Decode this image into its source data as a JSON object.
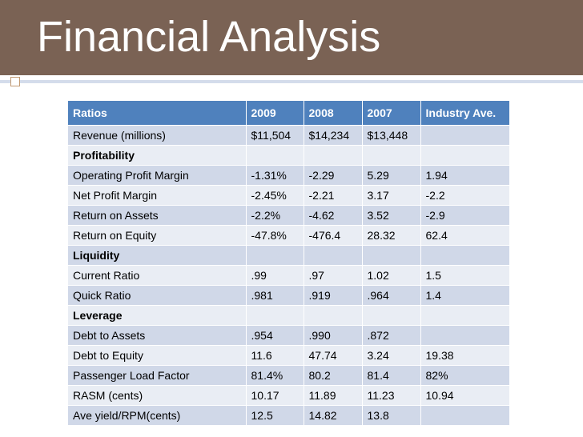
{
  "title": "Financial Analysis",
  "colors": {
    "title_bar": "#7a6254",
    "header_bg": "#4f81bd",
    "row_dark": "#d0d8e8",
    "row_light": "#e9edf4",
    "accent": "#c19a73"
  },
  "table": {
    "headers": [
      "Ratios",
      "2009",
      "2008",
      "2007",
      "Industry Ave."
    ],
    "rows": [
      {
        "label": "Revenue (millions)",
        "section": false,
        "values": [
          "$11,504",
          "$14,234",
          "$13,448",
          ""
        ]
      },
      {
        "label": "Profitability",
        "section": true,
        "values": [
          "",
          "",
          "",
          ""
        ]
      },
      {
        "label": "Operating Profit Margin",
        "section": false,
        "values": [
          "-1.31%",
          "-2.29",
          "5.29",
          "1.94"
        ]
      },
      {
        "label": "Net Profit Margin",
        "section": false,
        "values": [
          "-2.45%",
          "-2.21",
          "3.17",
          "-2.2"
        ]
      },
      {
        "label": "Return on Assets",
        "section": false,
        "values": [
          "-2.2%",
          "-4.62",
          "3.52",
          "-2.9"
        ]
      },
      {
        "label": "Return on Equity",
        "section": false,
        "values": [
          "-47.8%",
          "-476.4",
          "28.32",
          "62.4"
        ]
      },
      {
        "label": "Liquidity",
        "section": true,
        "values": [
          "",
          "",
          "",
          ""
        ]
      },
      {
        "label": "Current Ratio",
        "section": false,
        "values": [
          ".99",
          ".97",
          "1.02",
          "1.5"
        ]
      },
      {
        "label": "Quick Ratio",
        "section": false,
        "values": [
          ".981",
          ".919",
          ".964",
          "1.4"
        ]
      },
      {
        "label": "Leverage",
        "section": true,
        "values": [
          "",
          "",
          "",
          ""
        ]
      },
      {
        "label": "Debt to Assets",
        "section": false,
        "values": [
          ".954",
          ".990",
          ".872",
          ""
        ]
      },
      {
        "label": "Debt to Equity",
        "section": false,
        "values": [
          "11.6",
          "47.74",
          "3.24",
          "19.38"
        ]
      },
      {
        "label": "Passenger Load Factor",
        "section": false,
        "values": [
          "81.4%",
          "80.2",
          "81.4",
          "82%"
        ]
      },
      {
        "label": "RASM (cents)",
        "section": false,
        "values": [
          "10.17",
          "11.89",
          "11.23",
          "10.94"
        ]
      },
      {
        "label": "Ave yield/RPM(cents)",
        "section": false,
        "values": [
          "12.5",
          "14.82",
          "13.8",
          ""
        ]
      }
    ]
  }
}
